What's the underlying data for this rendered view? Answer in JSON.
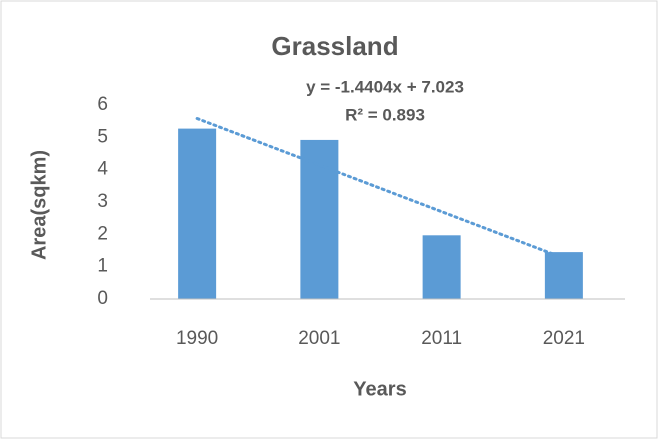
{
  "chart_data": {
    "type": "bar",
    "title": "Grassland",
    "categories": [
      "1990",
      "2001",
      "2011",
      "2021"
    ],
    "values": [
      5.27,
      4.92,
      1.97,
      1.45
    ],
    "color": "#5b9bd5",
    "ylim": [
      0,
      6
    ],
    "yticks": [
      0,
      1,
      2,
      3,
      4,
      5,
      6
    ],
    "grid": false,
    "x_label": "Years",
    "y_label": "Area(sqkm)",
    "trendline": {
      "type": "linear",
      "slope": -1.4404,
      "intercept": 7.023,
      "r2": 0.893,
      "label": "y = -1.4404x + 7.023",
      "r2_label": "R² = 0.893",
      "color": "#5b9bd5"
    }
  }
}
